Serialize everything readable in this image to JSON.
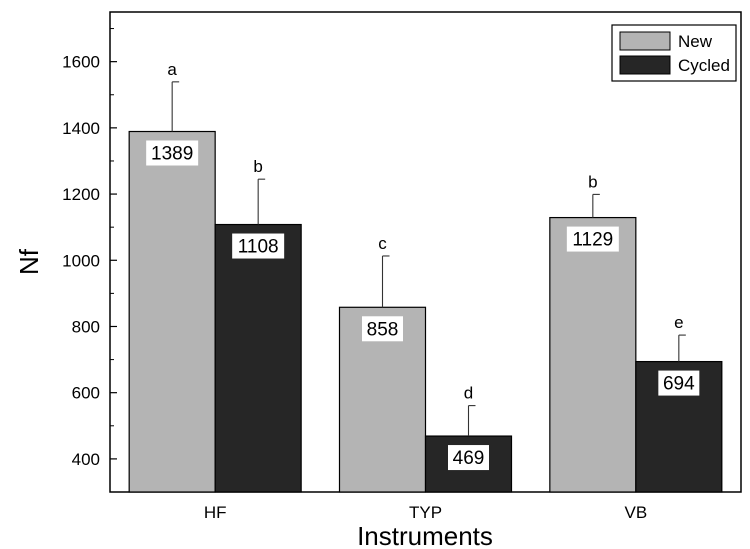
{
  "chart_data": {
    "type": "bar",
    "categories": [
      "HF",
      "TYP",
      "VB"
    ],
    "xlabel": "Instruments",
    "ylabel": "Nf",
    "ylim": [
      300,
      1750
    ],
    "yticks": [
      400,
      600,
      800,
      1000,
      1200,
      1400,
      1600
    ],
    "grid": false,
    "legend_position": "top-right",
    "series": [
      {
        "name": "New",
        "color": "#b4b4b4",
        "values": [
          1389,
          858,
          1129
        ],
        "error": [
          150,
          155,
          70
        ],
        "labels": [
          "1389",
          "858",
          "1129"
        ],
        "significance": [
          "a",
          "c",
          "b"
        ]
      },
      {
        "name": "Cycled",
        "color": "#262626",
        "values": [
          1108,
          469,
          694
        ],
        "error": [
          137,
          92,
          80
        ],
        "labels": [
          "1108",
          "469",
          "694"
        ],
        "significance": [
          "b",
          "d",
          "e"
        ]
      }
    ]
  }
}
